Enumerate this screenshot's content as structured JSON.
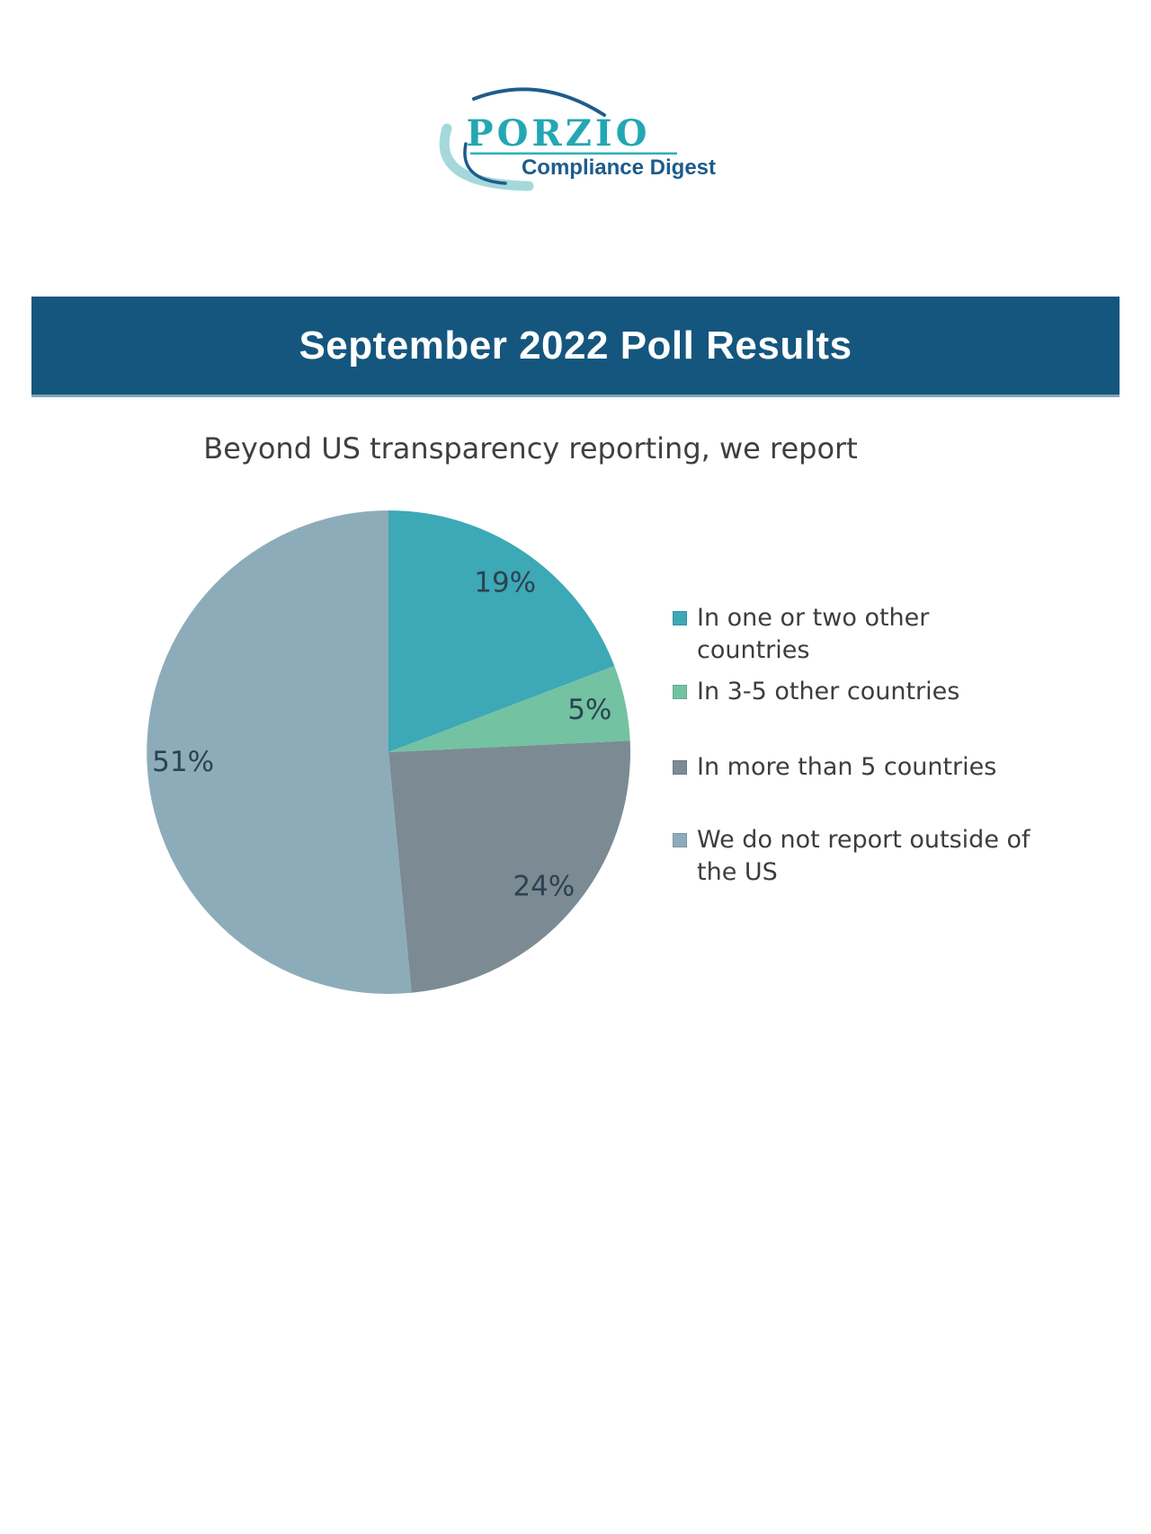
{
  "page": {
    "background": "#ffffff"
  },
  "logo": {
    "brand": "PORZIO",
    "tagline": "Compliance Digest",
    "colors": {
      "brand": "#23a7b4",
      "underline": "#2fb0ba",
      "tagline": "#1d5c8c",
      "arc_dark": "#1d5c8c",
      "arc_light": "#a5d8db"
    }
  },
  "banner": {
    "title": "September 2022 Poll Results",
    "colors": {
      "background": "#15567e",
      "text": "#ffffff",
      "bottom_edge": "#7fa3b8"
    }
  },
  "chart_data": {
    "type": "pie",
    "title": "Beyond US transparency reporting, we report",
    "title_color": "#3f3f3f",
    "start_angle_deg": 0,
    "direction": "clockwise",
    "legend_position": "right",
    "label_color": "#2d4250",
    "label_radius_fraction": 0.85,
    "legend_text_color": "#3d3d3d",
    "categories": [
      "In one or two other countries",
      "In 3-5 other countries",
      "In more than 5 countries",
      "We do not report outside of the US"
    ],
    "values": [
      19,
      5,
      24,
      51
    ],
    "slices": [
      {
        "label": "In one or two other countries",
        "legend_lines": [
          "In one or two other",
          "countries"
        ],
        "value": 19,
        "value_label": "19%",
        "color": "#3da8b6"
      },
      {
        "label": "In 3-5 other countries",
        "legend_lines": [
          "In 3-5 other countries"
        ],
        "value": 5,
        "value_label": "5%",
        "color": "#73c2a2"
      },
      {
        "label": "In more than 5 countries",
        "legend_lines": [
          "In more than 5 countries"
        ],
        "value": 24,
        "value_label": "24%",
        "color": "#7c8b93"
      },
      {
        "label": "We do not report outside of the US",
        "legend_lines": [
          "We do not report outside of",
          "the US"
        ],
        "value": 51,
        "value_label": "51%",
        "color": "#8dacba"
      }
    ]
  }
}
